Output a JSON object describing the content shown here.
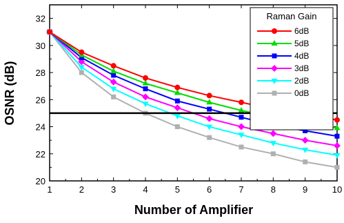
{
  "chart_data": {
    "type": "line",
    "title": "",
    "xlabel": "Number of Amplifier",
    "ylabel": "OSNR (dB)",
    "x": [
      1,
      2,
      3,
      4,
      5,
      6,
      7,
      8,
      9,
      10
    ],
    "xlim": [
      1,
      10
    ],
    "ylim": [
      20,
      33
    ],
    "xticks": [
      1,
      2,
      3,
      4,
      5,
      6,
      7,
      8,
      9,
      10
    ],
    "yticks": [
      20,
      22,
      24,
      26,
      28,
      30,
      32
    ],
    "threshold": 25,
    "grid": false,
    "legend_title": "Raman Gain",
    "legend_position": "top-right",
    "series": [
      {
        "name": "6dB",
        "color": "#ff0000",
        "marker": "circle",
        "values": [
          31.0,
          29.5,
          28.5,
          27.6,
          26.9,
          26.3,
          25.8,
          25.3,
          24.9,
          24.5
        ]
      },
      {
        "name": "5dB",
        "color": "#00dd00",
        "marker": "triangle",
        "values": [
          31.0,
          29.3,
          28.1,
          27.2,
          26.5,
          25.8,
          25.2,
          24.7,
          24.3,
          23.9
        ]
      },
      {
        "name": "4dB",
        "color": "#0000ff",
        "marker": "square",
        "values": [
          31.0,
          29.1,
          27.8,
          26.8,
          25.9,
          25.3,
          24.7,
          24.1,
          23.7,
          23.3
        ]
      },
      {
        "name": "3dB",
        "color": "#ff00ff",
        "marker": "diamond",
        "values": [
          31.0,
          28.8,
          27.3,
          26.2,
          25.4,
          24.6,
          24.0,
          23.5,
          23.0,
          22.6
        ]
      },
      {
        "name": "2dB",
        "color": "#00ffff",
        "marker": "triangle-down",
        "values": [
          31.0,
          28.4,
          26.8,
          25.7,
          24.8,
          24.0,
          23.4,
          22.8,
          22.3,
          21.9
        ]
      },
      {
        "name": "0dB",
        "color": "#b0b0b0",
        "marker": "square",
        "values": [
          31.0,
          28.0,
          26.2,
          25.0,
          24.0,
          23.2,
          22.5,
          22.0,
          21.4,
          21.0
        ]
      }
    ]
  }
}
